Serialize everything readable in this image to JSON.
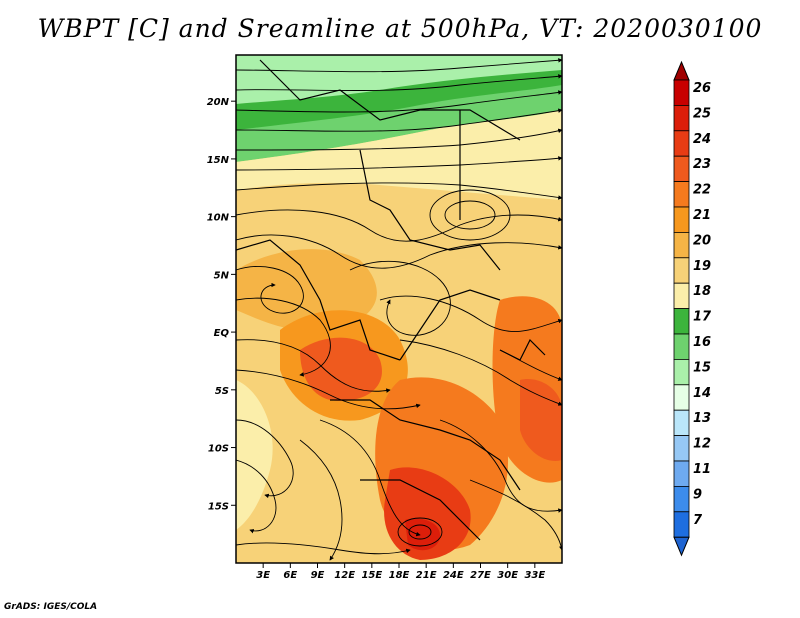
{
  "title": "WBPT [C] and Sreamline at 500hPa, VT: 2020030100",
  "footer": "GrADS: IGES/COLA",
  "map": {
    "lon_range": [
      0,
      36
    ],
    "lat_range": [
      -20,
      24
    ],
    "x_ticks": [
      {
        "value": 3,
        "label": "3E"
      },
      {
        "value": 6,
        "label": "6E"
      },
      {
        "value": 9,
        "label": "9E"
      },
      {
        "value": 12,
        "label": "12E"
      },
      {
        "value": 15,
        "label": "15E"
      },
      {
        "value": 18,
        "label": "18E"
      },
      {
        "value": 21,
        "label": "21E"
      },
      {
        "value": 24,
        "label": "24E"
      },
      {
        "value": 27,
        "label": "27E"
      },
      {
        "value": 30,
        "label": "30E"
      },
      {
        "value": 33,
        "label": "33E"
      }
    ],
    "y_ticks": [
      {
        "value": 20,
        "label": "20N"
      },
      {
        "value": 15,
        "label": "15N"
      },
      {
        "value": 10,
        "label": "10N"
      },
      {
        "value": 5,
        "label": "5N"
      },
      {
        "value": 0,
        "label": "EQ"
      },
      {
        "value": -5,
        "label": "5S"
      },
      {
        "value": -10,
        "label": "10S"
      },
      {
        "value": -15,
        "label": "15S"
      }
    ]
  },
  "colorbar": {
    "levels": [
      "26",
      "25",
      "24",
      "23",
      "22",
      "21",
      "20",
      "19",
      "18",
      "17",
      "16",
      "15",
      "14",
      "13",
      "12",
      "11",
      "9",
      "7"
    ],
    "colors": [
      "#c80000",
      "#dc1e0a",
      "#e83c14",
      "#ef5a1e",
      "#f57a1e",
      "#f7981e",
      "#f5b446",
      "#f7d278",
      "#fbeeaa",
      "#3cb43c",
      "#6ed26e",
      "#aaf0aa",
      "#e6ffe6",
      "#bae6fa",
      "#96c8f5",
      "#6eaaf0",
      "#3c8cec",
      "#1e6ee0"
    ],
    "top_color": "#a00000",
    "bottom_color": "#1e64d2"
  }
}
